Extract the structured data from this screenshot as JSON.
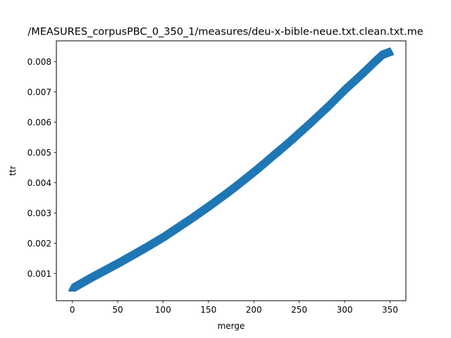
{
  "chart_data": {
    "type": "scatter",
    "title": "/MEASURES_corpusPBC_0_350_1/measures/deu-x-bible-neue.txt.clean.txt.me",
    "xlabel": "merge",
    "ylabel": "ttr",
    "xlim": [
      -17.5,
      367.5
    ],
    "ylim": [
      0.0001,
      0.00869
    ],
    "xticks": [
      0,
      50,
      100,
      150,
      200,
      250,
      300,
      350
    ],
    "xtick_labels": [
      "0",
      "50",
      "100",
      "150",
      "200",
      "250",
      "300",
      "350"
    ],
    "yticks": [
      0.001,
      0.002,
      0.003,
      0.004,
      0.005,
      0.006,
      0.007,
      0.008
    ],
    "ytick_labels": [
      "0.001",
      "0.002",
      "0.003",
      "0.004",
      "0.005",
      "0.006",
      "0.007",
      "0.008"
    ],
    "marker": "thick-triangle",
    "color": "#1f77b4",
    "series": [
      {
        "name": "ttr",
        "x": [
          0,
          10,
          20,
          30,
          40,
          50,
          60,
          70,
          80,
          90,
          100,
          110,
          120,
          130,
          140,
          150,
          160,
          170,
          180,
          190,
          200,
          210,
          220,
          230,
          240,
          250,
          260,
          270,
          280,
          290,
          300,
          310,
          320,
          330,
          340,
          350
        ],
        "y": [
          0.00052,
          0.00069,
          0.00086,
          0.00102,
          0.00118,
          0.00134,
          0.00151,
          0.00168,
          0.00185,
          0.00203,
          0.00221,
          0.00241,
          0.00261,
          0.00281,
          0.00302,
          0.00323,
          0.00345,
          0.00367,
          0.0039,
          0.00414,
          0.00438,
          0.00463,
          0.00489,
          0.00514,
          0.0054,
          0.00567,
          0.00594,
          0.00622,
          0.0065,
          0.0068,
          0.0071,
          0.00737,
          0.00765,
          0.00794,
          0.00822,
          0.00833
        ]
      }
    ]
  }
}
